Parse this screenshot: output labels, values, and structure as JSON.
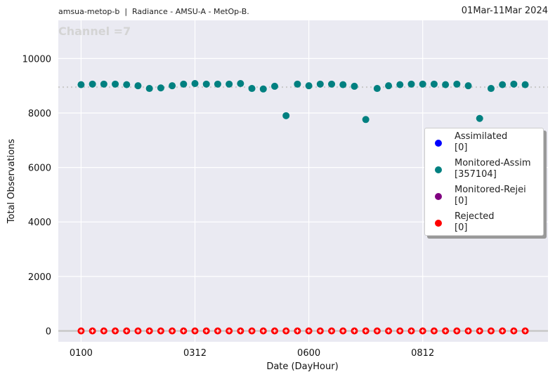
{
  "header": {
    "left_title": "amsua-metop-b  |  Radiance - AMSU-A - MetOp-B.",
    "right_title": "01Mar-11Mar 2024"
  },
  "chart_data": {
    "type": "scatter",
    "annotation": "Channel =7",
    "xlabel": "Date (DayHour)",
    "ylabel": "Total Observations",
    "x_tick_labels": [
      "0100",
      "0312",
      "0600",
      "0812"
    ],
    "x_tick_index": [
      0,
      10,
      20,
      30
    ],
    "xlim": [
      -2,
      41
    ],
    "ylim": [
      -400,
      11400
    ],
    "y_ticks": [
      0,
      2000,
      4000,
      6000,
      8000,
      10000
    ],
    "grid": true,
    "reference_lines": [
      {
        "y": 8950,
        "style": "dotted",
        "color": "#c8c8c8"
      },
      {
        "y": 0,
        "style": "solid",
        "color": "#c8c8c8"
      }
    ],
    "legend_placement": "right",
    "series": [
      {
        "name": "Assimilated",
        "count_label": "[0]",
        "color": "#0000ff",
        "values": []
      },
      {
        "name": "Monitored-Assim",
        "count_label": "[357104]",
        "color": "#008080",
        "values": [
          9040,
          9060,
          9060,
          9060,
          9040,
          9000,
          8900,
          8920,
          9000,
          9060,
          9080,
          9060,
          9060,
          9060,
          9080,
          8900,
          8880,
          8980,
          7900,
          9060,
          9000,
          9060,
          9060,
          9040,
          8980,
          7760,
          8900,
          9000,
          9040,
          9060,
          9060,
          9060,
          9040,
          9060,
          9000,
          7800,
          8900,
          9040,
          9060,
          9040
        ]
      },
      {
        "name": "Monitored-Rejei",
        "count_label": "[0]",
        "color": "#800080",
        "values": []
      },
      {
        "name": "Rejected",
        "count_label": "[0]",
        "color": "#ff0000",
        "values": [
          0,
          0,
          0,
          0,
          0,
          0,
          0,
          0,
          0,
          0,
          0,
          0,
          0,
          0,
          0,
          0,
          0,
          0,
          0,
          0,
          0,
          0,
          0,
          0,
          0,
          0,
          0,
          0,
          0,
          0,
          0,
          0,
          0,
          0,
          0,
          0,
          0,
          0,
          0,
          0
        ]
      }
    ]
  }
}
